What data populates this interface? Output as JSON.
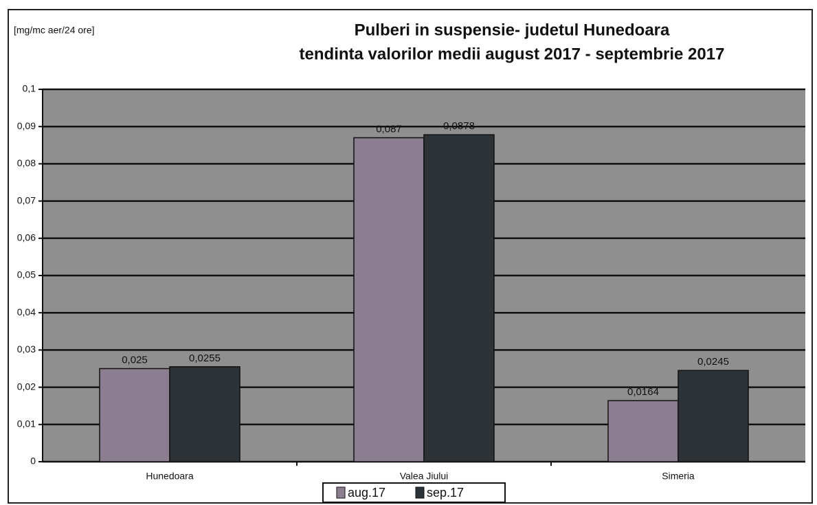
{
  "chart_data": {
    "type": "bar",
    "title": "Pulberi in suspensie- judetul Hunedoara",
    "subtitle": "tendinta valorilor medii august 2017 - septembrie 2017",
    "y_label": "[mg/mc aer/24 ore]",
    "categories": [
      "Hunedoara",
      "Valea Jiului",
      "Simeria"
    ],
    "series": [
      {
        "name": "aug.17",
        "color": "#8a7e90",
        "values": [
          0.025,
          0.087,
          0.0164
        ],
        "value_labels": [
          "0,025",
          "0,087",
          "0,0164"
        ]
      },
      {
        "name": "sep.17",
        "color": "#2d3236",
        "values": [
          0.0255,
          0.0878,
          0.0245
        ],
        "value_labels": [
          "0,0255",
          "0,0878",
          "0,0245"
        ]
      }
    ],
    "ylim": [
      0,
      0.1
    ],
    "yticks": [
      0,
      {
        "value": 0.01,
        "label": "0,01"
      },
      {
        "value": 0.02,
        "label": "0,02"
      },
      {
        "value": 0.03,
        "label": "0,03"
      },
      {
        "value": 0.04,
        "label": "0,04"
      },
      {
        "value": 0.05,
        "label": "0,05"
      },
      {
        "value": 0.06,
        "label": "0,06"
      },
      {
        "value": 0.07,
        "label": "0,07"
      },
      {
        "value": 0.08,
        "label": "0,08"
      },
      {
        "value": 0.09,
        "label": "0,09"
      },
      {
        "value": 0.1,
        "label": "0,1"
      }
    ],
    "grid": true,
    "legend": "bottom"
  }
}
